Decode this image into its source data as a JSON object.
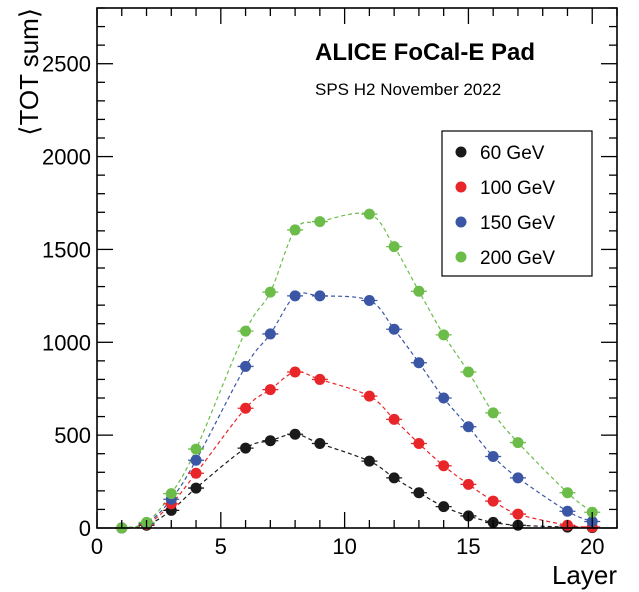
{
  "chart_data": {
    "type": "scatter",
    "title": "ALICE FoCal-E Pad",
    "subtitle": "SPS H2 November 2022",
    "xlabel": "Layer",
    "ylabel": "⟨TOT sum⟩",
    "xlim": [
      0,
      21
    ],
    "ylim": [
      0,
      2800
    ],
    "xticks": [
      0,
      5,
      10,
      15,
      20
    ],
    "yticks": [
      0,
      500,
      1000,
      1500,
      2000,
      2500
    ],
    "grid": false,
    "legend_position": "top-right",
    "series": [
      {
        "name": "60 GeV",
        "color": "#1a1a1a",
        "x": [
          1,
          2,
          3,
          4,
          6,
          7,
          8,
          9,
          11,
          12,
          13,
          14,
          15,
          16,
          17,
          19,
          20
        ],
        "y": [
          0,
          15,
          95,
          215,
          430,
          470,
          505,
          455,
          360,
          270,
          190,
          115,
          65,
          30,
          15,
          5,
          2
        ]
      },
      {
        "name": "100 GeV",
        "color": "#e8262a",
        "x": [
          1,
          2,
          3,
          4,
          6,
          7,
          8,
          9,
          11,
          12,
          13,
          14,
          15,
          16,
          17,
          19,
          20
        ],
        "y": [
          0,
          20,
          130,
          295,
          645,
          745,
          840,
          800,
          710,
          585,
          455,
          335,
          235,
          145,
          75,
          15,
          5
        ]
      },
      {
        "name": "150 GeV",
        "color": "#3a56a5",
        "x": [
          1,
          2,
          3,
          4,
          6,
          7,
          8,
          9,
          11,
          12,
          13,
          14,
          15,
          16,
          17,
          19,
          20
        ],
        "y": [
          0,
          25,
          155,
          365,
          870,
          1045,
          1250,
          1250,
          1225,
          1070,
          890,
          700,
          545,
          385,
          270,
          90,
          35
        ]
      },
      {
        "name": "200 GeV",
        "color": "#6cbc4a",
        "x": [
          1,
          2,
          3,
          4,
          6,
          7,
          8,
          9,
          11,
          12,
          13,
          14,
          15,
          16,
          17,
          19,
          20
        ],
        "y": [
          0,
          30,
          185,
          425,
          1060,
          1270,
          1605,
          1650,
          1690,
          1515,
          1275,
          1040,
          840,
          620,
          460,
          190,
          85
        ]
      }
    ]
  }
}
